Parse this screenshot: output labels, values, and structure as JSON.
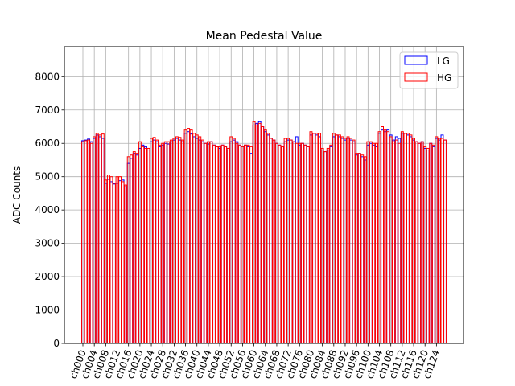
{
  "chart_data": {
    "type": "bar",
    "title": "Mean Pedestal Value",
    "xlabel": "",
    "ylabel": "ADC Counts",
    "ylim": [
      0,
      8900
    ],
    "yticks": [
      0,
      1000,
      2000,
      3000,
      4000,
      5000,
      6000,
      7000,
      8000
    ],
    "grid": true,
    "legend_position": "top-right",
    "categories": [
      "ch000",
      "ch001",
      "ch002",
      "ch003",
      "ch004",
      "ch005",
      "ch006",
      "ch007",
      "ch008",
      "ch009",
      "ch010",
      "ch011",
      "ch012",
      "ch013",
      "ch014",
      "ch015",
      "ch016",
      "ch017",
      "ch018",
      "ch019",
      "ch020",
      "ch021",
      "ch022",
      "ch023",
      "ch024",
      "ch025",
      "ch026",
      "ch027",
      "ch028",
      "ch029",
      "ch030",
      "ch031",
      "ch032",
      "ch033",
      "ch034",
      "ch035",
      "ch036",
      "ch037",
      "ch038",
      "ch039",
      "ch040",
      "ch041",
      "ch042",
      "ch043",
      "ch044",
      "ch045",
      "ch046",
      "ch047",
      "ch048",
      "ch049",
      "ch050",
      "ch051",
      "ch052",
      "ch053",
      "ch054",
      "ch055",
      "ch056",
      "ch057",
      "ch058",
      "ch059",
      "ch060",
      "ch061",
      "ch062",
      "ch063",
      "ch064",
      "ch065",
      "ch066",
      "ch067",
      "ch068",
      "ch069",
      "ch070",
      "ch071",
      "ch072",
      "ch073",
      "ch074",
      "ch075",
      "ch076",
      "ch077",
      "ch078",
      "ch079",
      "ch080",
      "ch081",
      "ch082",
      "ch083",
      "ch084",
      "ch085",
      "ch086",
      "ch087",
      "ch088",
      "ch089",
      "ch090",
      "ch091",
      "ch092",
      "ch093",
      "ch094",
      "ch095",
      "ch096",
      "ch097",
      "ch098",
      "ch099",
      "ch100",
      "ch101",
      "ch102",
      "ch103",
      "ch104",
      "ch105",
      "ch106",
      "ch107",
      "ch108",
      "ch109",
      "ch110",
      "ch111",
      "ch112",
      "ch113",
      "ch114",
      "ch115",
      "ch116",
      "ch117",
      "ch118",
      "ch119",
      "ch120",
      "ch121",
      "ch122",
      "ch123",
      "ch124",
      "ch125",
      "ch126",
      "ch127"
    ],
    "xtick_labels": [
      "ch000",
      "ch004",
      "ch008",
      "ch012",
      "ch016",
      "ch020",
      "ch024",
      "ch028",
      "ch032",
      "ch036",
      "ch040",
      "ch044",
      "ch048",
      "ch052",
      "ch056",
      "ch060",
      "ch064",
      "ch068",
      "ch072",
      "ch076",
      "ch080",
      "ch084",
      "ch088",
      "ch092",
      "ch096",
      "ch100",
      "ch104",
      "ch108",
      "ch112",
      "ch116",
      "ch120",
      "ch124"
    ],
    "series": [
      {
        "name": "LG",
        "color": "#0000ff",
        "values": [
          6080,
          6100,
          6130,
          6050,
          6150,
          6250,
          6200,
          6150,
          4800,
          4920,
          4850,
          4780,
          4800,
          4880,
          4900,
          4700,
          5400,
          5550,
          5700,
          5650,
          5850,
          5950,
          5900,
          5800,
          6050,
          6100,
          6050,
          5900,
          5950,
          6000,
          5980,
          6050,
          6100,
          6150,
          6100,
          6050,
          6300,
          6350,
          6280,
          6200,
          6150,
          6100,
          6050,
          6000,
          5980,
          6050,
          5950,
          5900,
          5850,
          5950,
          5900,
          5800,
          6050,
          6100,
          6050,
          5950,
          5900,
          5950,
          5900,
          5700,
          6550,
          6600,
          6650,
          6500,
          6350,
          6250,
          6150,
          6100,
          6000,
          5950,
          5900,
          6050,
          6100,
          6100,
          6050,
          6200,
          5950,
          6000,
          5950,
          5900,
          6250,
          6300,
          6250,
          6200,
          5800,
          5750,
          5800,
          5900,
          6200,
          6250,
          6200,
          6150,
          6100,
          6150,
          6100,
          6050,
          5650,
          5700,
          5600,
          5500,
          5950,
          6000,
          5950,
          5900,
          6300,
          6400,
          6350,
          6400,
          6250,
          6100,
          6200,
          6150,
          6300,
          6300,
          6250,
          6200,
          6100,
          6050,
          6000,
          6050,
          5850,
          5800,
          6000,
          5900,
          6150,
          6100,
          6250,
          6100
        ]
      },
      {
        "name": "HG",
        "color": "#ff0000",
        "values": [
          6050,
          6080,
          6100,
          6000,
          6200,
          6300,
          6250,
          6280,
          4900,
          5050,
          5000,
          4800,
          5000,
          5000,
          4850,
          4750,
          5600,
          5650,
          5750,
          5700,
          6050,
          5900,
          5850,
          5850,
          6150,
          6180,
          6100,
          5950,
          6000,
          6050,
          6050,
          6100,
          6150,
          6200,
          6180,
          6100,
          6400,
          6450,
          6400,
          6300,
          6250,
          6200,
          6100,
          6000,
          6050,
          6050,
          5950,
          5900,
          5900,
          5950,
          5900,
          5850,
          6200,
          6150,
          6000,
          5950,
          5900,
          5950,
          5950,
          5900,
          6650,
          6550,
          6600,
          6500,
          6400,
          6300,
          6150,
          6100,
          6000,
          5950,
          5900,
          6150,
          6150,
          6100,
          6050,
          6000,
          6000,
          6000,
          5950,
          5900,
          6350,
          6300,
          6300,
          6300,
          5850,
          5750,
          5850,
          5950,
          6300,
          6250,
          6250,
          6200,
          6150,
          6200,
          6150,
          6100,
          5700,
          5700,
          5650,
          5600,
          6050,
          6050,
          6000,
          6000,
          6350,
          6500,
          6400,
          6350,
          6200,
          6050,
          6100,
          6000,
          6350,
          6300,
          6300,
          6250,
          6150,
          6050,
          6000,
          6050,
          5900,
          5850,
          6000,
          5950,
          6200,
          6150,
          6150,
          6100
        ]
      }
    ]
  }
}
